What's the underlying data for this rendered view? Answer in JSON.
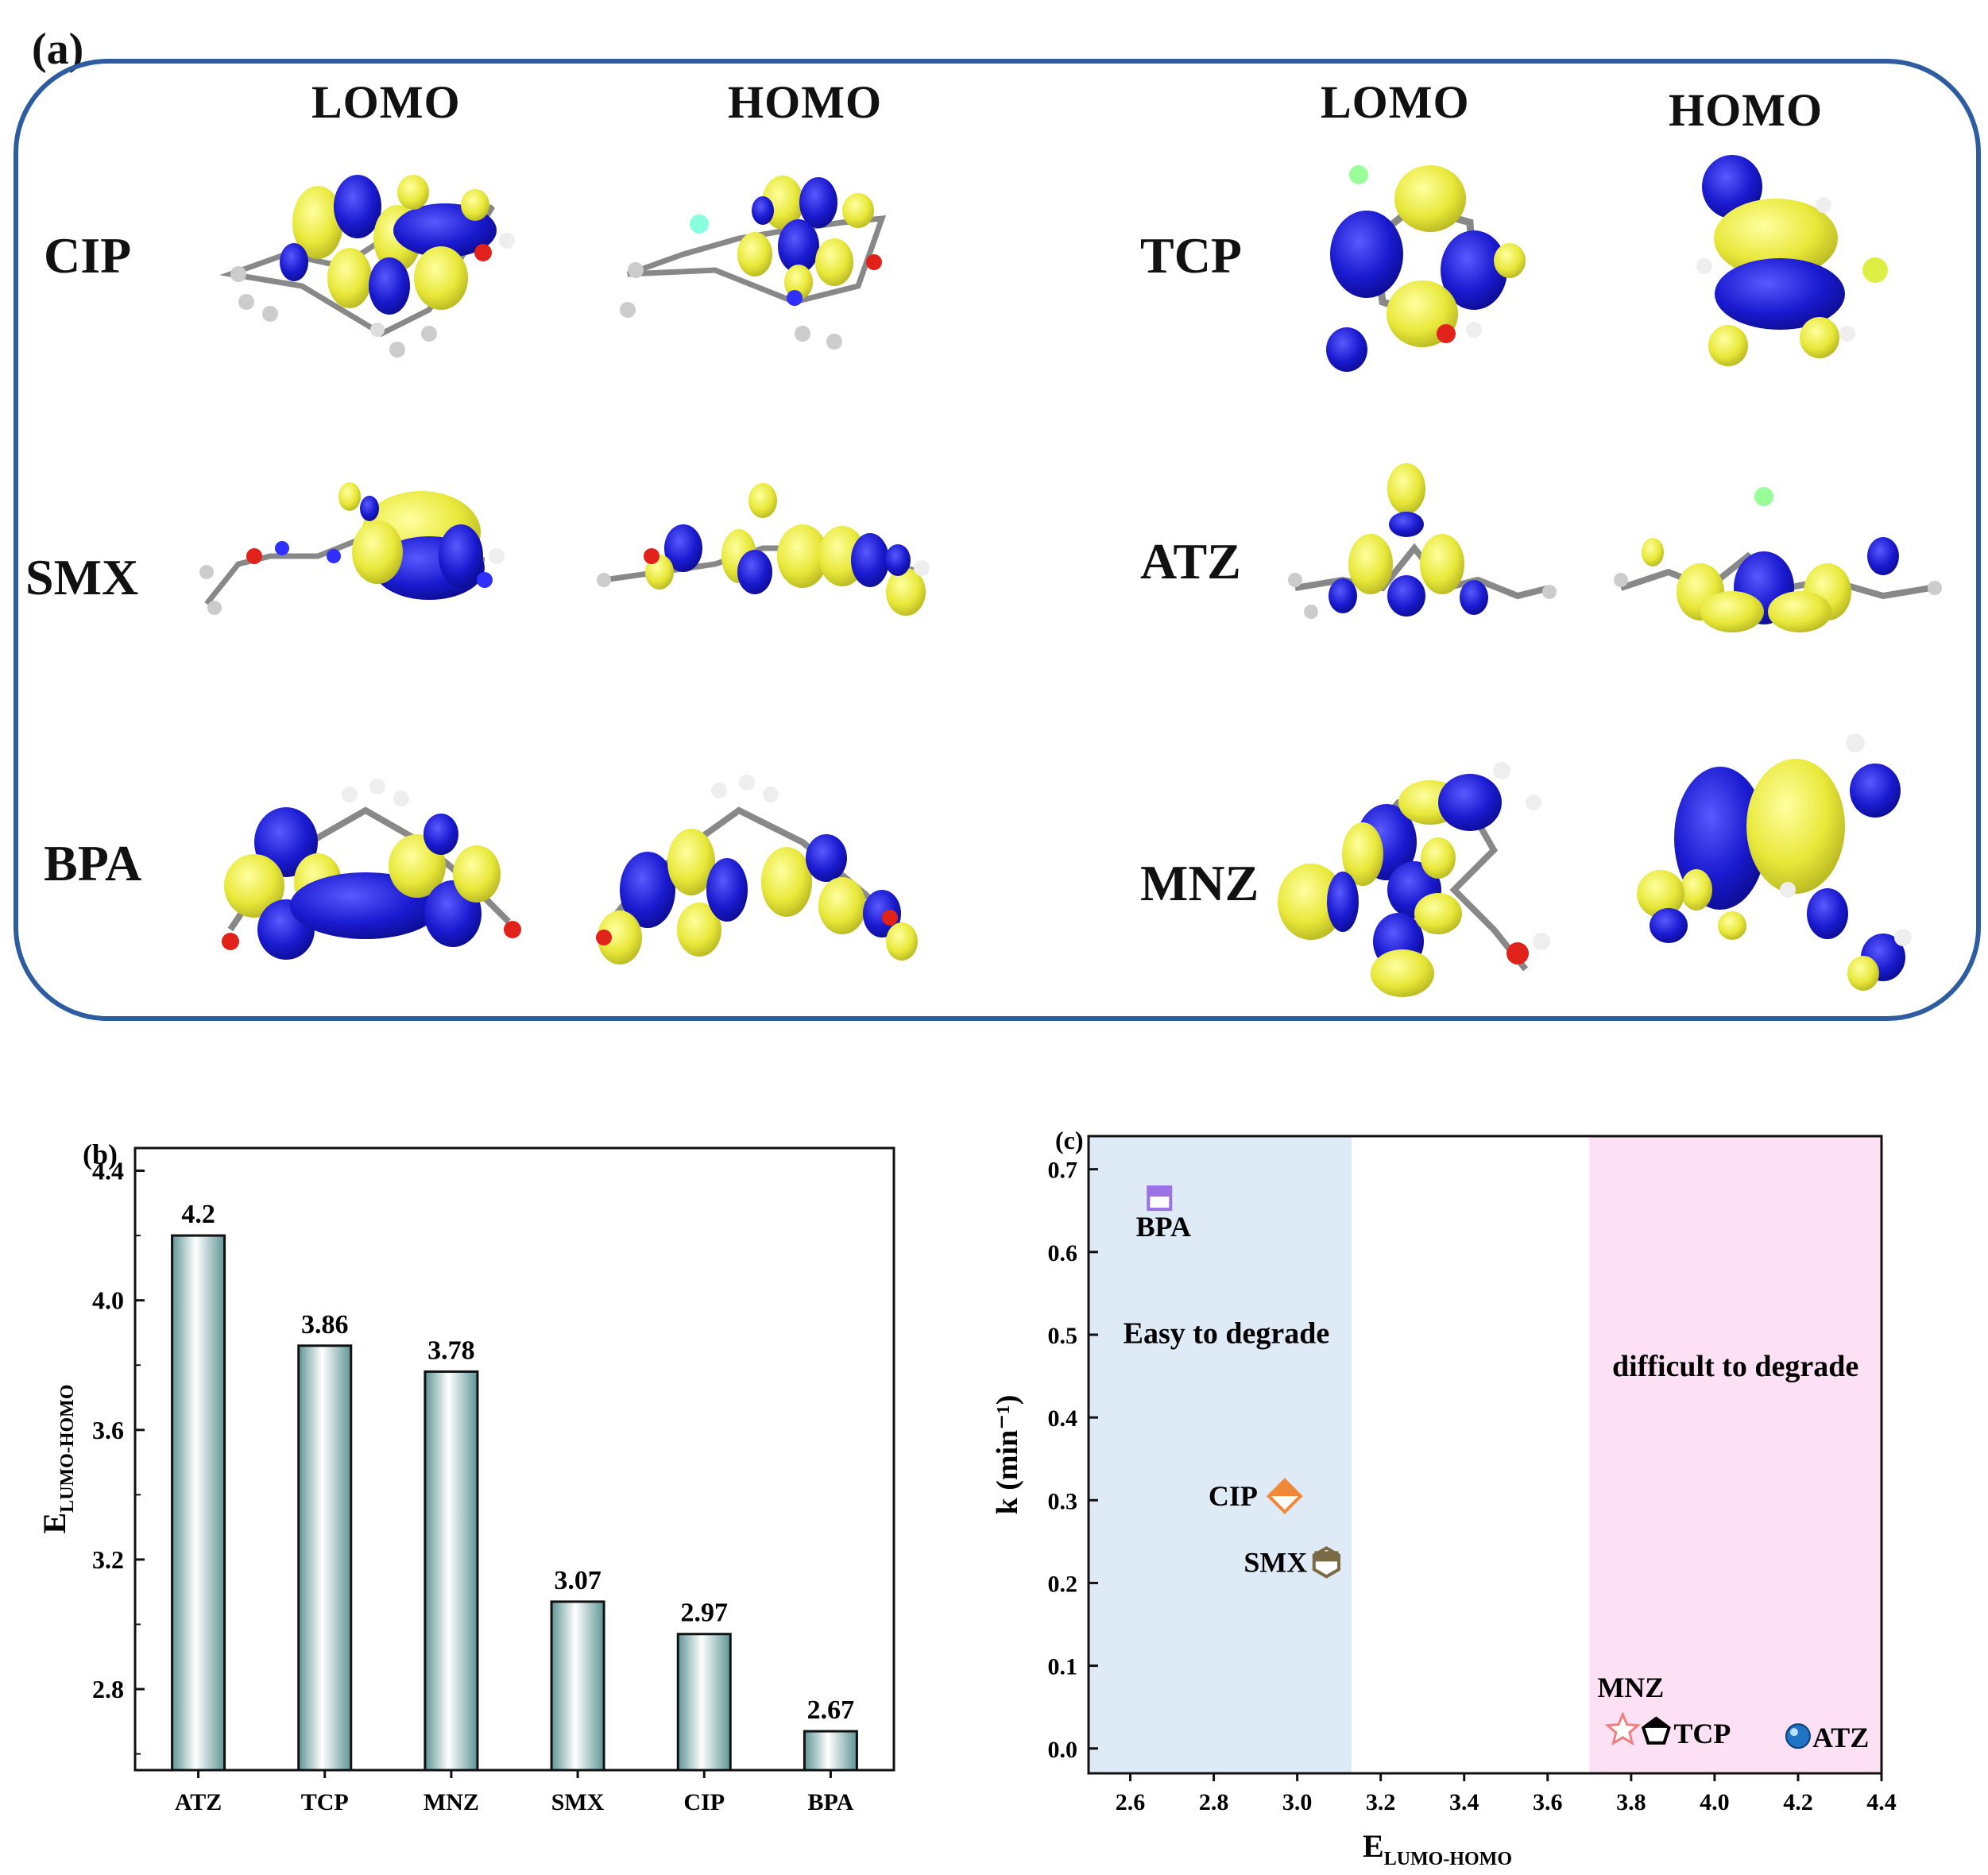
{
  "panel_a": {
    "letter": "(a)",
    "left_group": {
      "col1": "LOMO",
      "col2": "HOMO"
    },
    "right_group": {
      "col1": "LOMO",
      "col2": "HOMO"
    },
    "molecules_left": [
      "CIP",
      "SMX",
      "BPA"
    ],
    "molecules_right": [
      "TCP",
      "ATZ",
      "MNZ"
    ],
    "colors": {
      "positive_lobe": "#ffff30",
      "negative_lobe": "#1a1ad0",
      "frame": "#2d5ca0"
    }
  },
  "chart_data": [
    {
      "type": "bar",
      "panel": "(b)",
      "categories": [
        "ATZ",
        "TCP",
        "MNZ",
        "SMX",
        "CIP",
        "BPA"
      ],
      "values": [
        4.2,
        3.86,
        3.78,
        3.07,
        2.97,
        2.67
      ],
      "value_labels": [
        "4.2",
        "3.86",
        "3.78",
        "3.07",
        "2.97",
        "2.67"
      ],
      "ylabel_main": "E",
      "ylabel_sub": "LUMO-HOMO",
      "ylim": [
        2.55,
        4.47
      ],
      "yticks": [
        2.8,
        3.2,
        3.6,
        4.0,
        4.4
      ],
      "ytick_labels": [
        "2.8",
        "3.2",
        "3.6",
        "4.0",
        "4.4"
      ],
      "bar_color": "#5f9595"
    },
    {
      "type": "scatter",
      "panel": "(c)",
      "xlabel_main": "E",
      "xlabel_sub": "LUMO-HOMO",
      "ylabel": "k (min⁻¹)",
      "xlim": [
        2.5,
        4.4
      ],
      "ylim": [
        -0.03,
        0.74
      ],
      "xticks": [
        2.6,
        2.8,
        3.0,
        3.2,
        3.4,
        3.6,
        3.8,
        4.0,
        4.2,
        4.4
      ],
      "xtick_labels": [
        "2.6",
        "2.8",
        "3.0",
        "3.2",
        "3.4",
        "3.6",
        "3.8",
        "4.0",
        "4.2",
        "4.4"
      ],
      "yticks": [
        0.0,
        0.1,
        0.2,
        0.3,
        0.4,
        0.5,
        0.6,
        0.7
      ],
      "ytick_labels": [
        "0.0",
        "0.1",
        "0.2",
        "0.3",
        "0.4",
        "0.5",
        "0.6",
        "0.7"
      ],
      "regions": [
        {
          "x0": 2.5,
          "x1": 3.13,
          "label": "Easy to degrade",
          "color": "#deeaf5"
        },
        {
          "x0": 3.7,
          "x1": 4.4,
          "label": "difficult to degrade",
          "color": "#fbe1f3"
        }
      ],
      "points": [
        {
          "name": "BPA",
          "x": 2.67,
          "y": 0.665,
          "marker": "square",
          "color": "#9b72e6"
        },
        {
          "name": "CIP",
          "x": 2.97,
          "y": 0.305,
          "marker": "diamond",
          "color": "#f0883a"
        },
        {
          "name": "SMX",
          "x": 3.07,
          "y": 0.225,
          "marker": "hexagon",
          "color": "#7a6a45"
        },
        {
          "name": "MNZ",
          "x": 3.78,
          "y": 0.022,
          "marker": "star",
          "color": "#f08080"
        },
        {
          "name": "TCP",
          "x": 3.86,
          "y": 0.02,
          "marker": "pentagon",
          "color": "#000000"
        },
        {
          "name": "ATZ",
          "x": 4.2,
          "y": 0.015,
          "marker": "sphere",
          "color": "#1f74c6"
        }
      ]
    }
  ]
}
